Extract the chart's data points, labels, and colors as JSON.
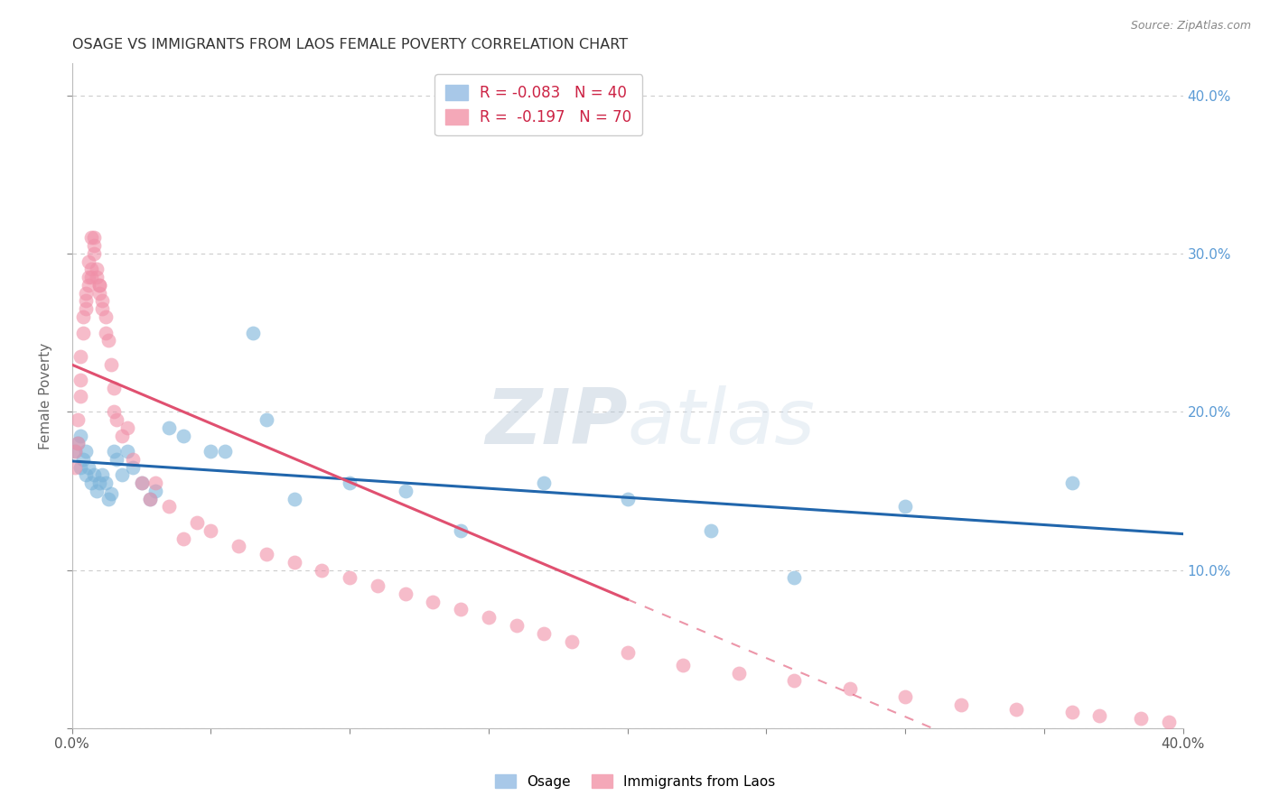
{
  "title": "OSAGE VS IMMIGRANTS FROM LAOS FEMALE POVERTY CORRELATION CHART",
  "source": "Source: ZipAtlas.com",
  "ylabel": "Female Poverty",
  "watermark": "ZIPatlas",
  "osage_color": "#7ab3d9",
  "laos_color": "#f090a8",
  "osage_line_color": "#2166ac",
  "laos_line_color": "#e05070",
  "background_color": "#ffffff",
  "grid_color": "#cccccc",
  "osage_x": [
    0.001,
    0.002,
    0.003,
    0.003,
    0.004,
    0.005,
    0.005,
    0.006,
    0.007,
    0.008,
    0.009,
    0.01,
    0.011,
    0.012,
    0.013,
    0.014,
    0.015,
    0.016,
    0.018,
    0.02,
    0.022,
    0.025,
    0.028,
    0.03,
    0.035,
    0.04,
    0.05,
    0.055,
    0.065,
    0.07,
    0.08,
    0.1,
    0.12,
    0.14,
    0.17,
    0.2,
    0.23,
    0.26,
    0.3,
    0.36
  ],
  "osage_y": [
    0.175,
    0.18,
    0.185,
    0.165,
    0.17,
    0.175,
    0.16,
    0.165,
    0.155,
    0.16,
    0.15,
    0.155,
    0.16,
    0.155,
    0.145,
    0.148,
    0.175,
    0.17,
    0.16,
    0.175,
    0.165,
    0.155,
    0.145,
    0.15,
    0.19,
    0.185,
    0.175,
    0.175,
    0.25,
    0.195,
    0.145,
    0.155,
    0.15,
    0.125,
    0.155,
    0.145,
    0.125,
    0.095,
    0.14,
    0.155
  ],
  "laos_x": [
    0.001,
    0.001,
    0.002,
    0.002,
    0.003,
    0.003,
    0.003,
    0.004,
    0.004,
    0.005,
    0.005,
    0.005,
    0.006,
    0.006,
    0.006,
    0.007,
    0.007,
    0.007,
    0.008,
    0.008,
    0.008,
    0.009,
    0.009,
    0.01,
    0.01,
    0.01,
    0.011,
    0.011,
    0.012,
    0.012,
    0.013,
    0.014,
    0.015,
    0.015,
    0.016,
    0.018,
    0.02,
    0.022,
    0.025,
    0.028,
    0.03,
    0.035,
    0.04,
    0.045,
    0.05,
    0.06,
    0.07,
    0.08,
    0.09,
    0.1,
    0.11,
    0.12,
    0.13,
    0.14,
    0.15,
    0.16,
    0.17,
    0.18,
    0.2,
    0.22,
    0.24,
    0.26,
    0.28,
    0.3,
    0.32,
    0.34,
    0.36,
    0.37,
    0.385,
    0.395
  ],
  "laos_y": [
    0.175,
    0.165,
    0.195,
    0.18,
    0.22,
    0.235,
    0.21,
    0.25,
    0.26,
    0.27,
    0.265,
    0.275,
    0.28,
    0.285,
    0.295,
    0.29,
    0.285,
    0.31,
    0.305,
    0.3,
    0.31,
    0.29,
    0.285,
    0.28,
    0.275,
    0.28,
    0.27,
    0.265,
    0.25,
    0.26,
    0.245,
    0.23,
    0.215,
    0.2,
    0.195,
    0.185,
    0.19,
    0.17,
    0.155,
    0.145,
    0.155,
    0.14,
    0.12,
    0.13,
    0.125,
    0.115,
    0.11,
    0.105,
    0.1,
    0.095,
    0.09,
    0.085,
    0.08,
    0.075,
    0.07,
    0.065,
    0.06,
    0.055,
    0.048,
    0.04,
    0.035,
    0.03,
    0.025,
    0.02,
    0.015,
    0.012,
    0.01,
    0.008,
    0.006,
    0.004
  ],
  "xmin": 0.0,
  "xmax": 0.4,
  "ymin": 0.0,
  "ymax": 0.42,
  "yticks": [
    0.0,
    0.1,
    0.2,
    0.3,
    0.4
  ]
}
